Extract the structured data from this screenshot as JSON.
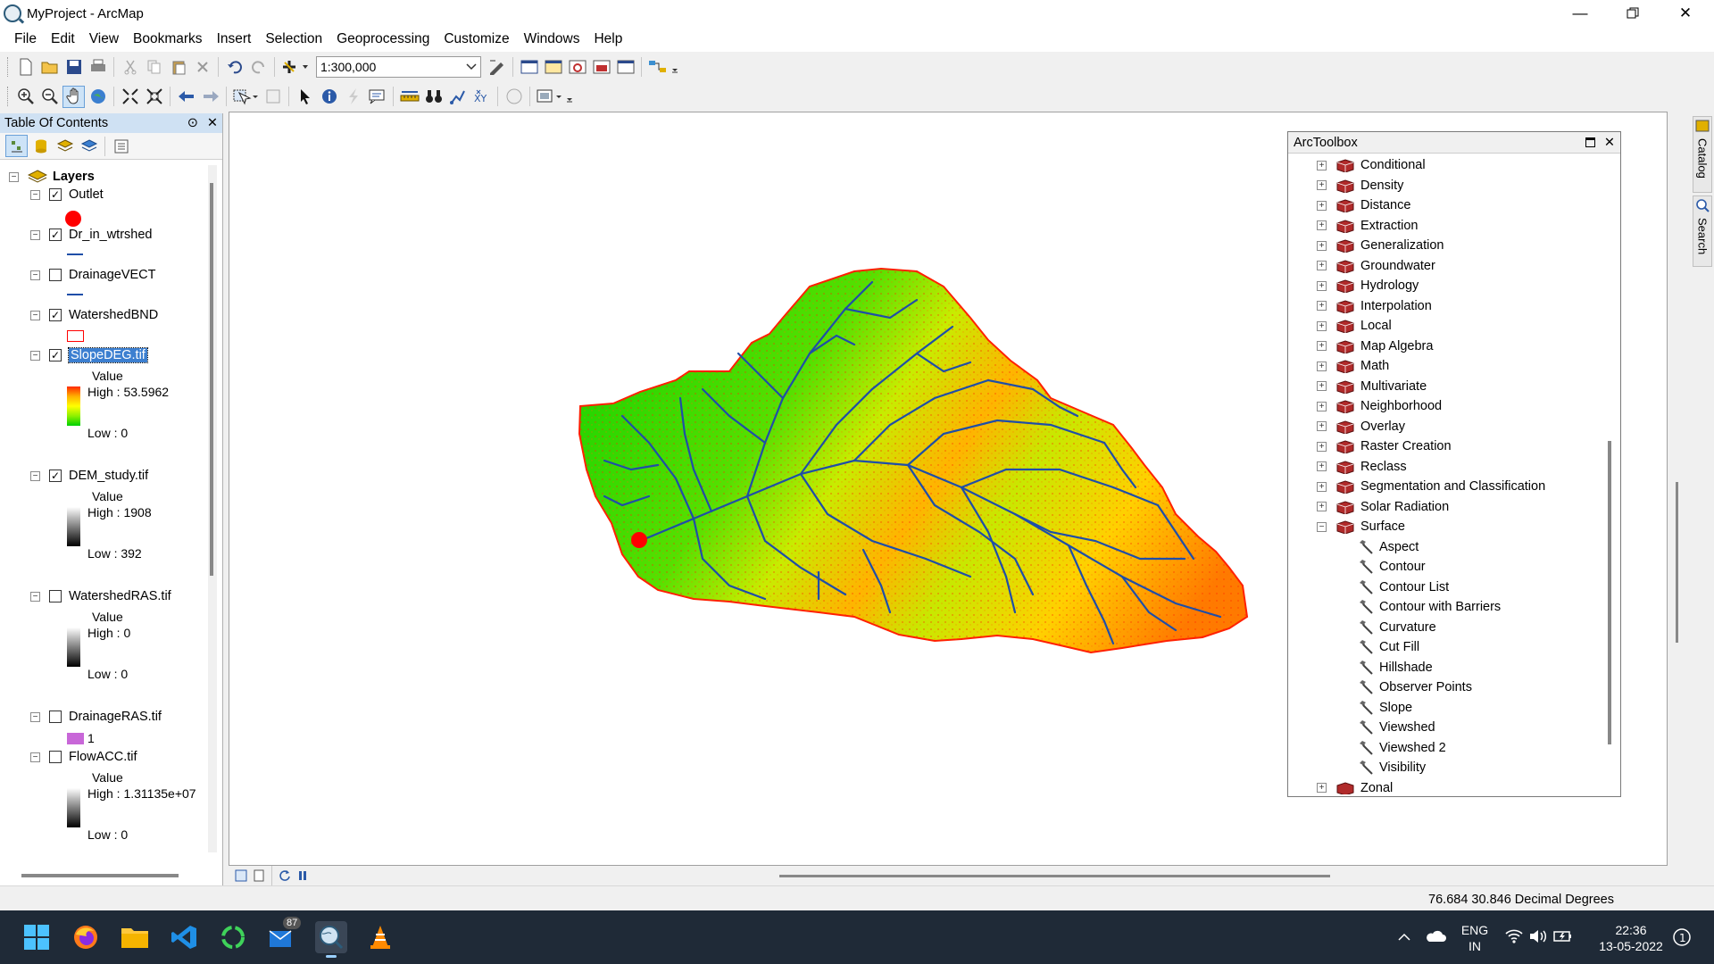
{
  "window": {
    "title": "MyProject - ArcMap"
  },
  "menu": [
    "File",
    "Edit",
    "View",
    "Bookmarks",
    "Insert",
    "Selection",
    "Geoprocessing",
    "Customize",
    "Windows",
    "Help"
  ],
  "toolbar": {
    "scale": "1:300,000"
  },
  "toc": {
    "title": "Table Of Contents",
    "root": "Layers",
    "layers": [
      {
        "name": "Outlet",
        "checked": true
      },
      {
        "name": "Dr_in_wtrshed",
        "checked": true
      },
      {
        "name": "DrainageVECT",
        "checked": false
      },
      {
        "name": "WatershedBND",
        "checked": true
      },
      {
        "name": "SlopeDEG.tif",
        "checked": true,
        "value_label": "Value",
        "high": "High : 53.5962",
        "low": "Low : 0"
      },
      {
        "name": "DEM_study.tif",
        "checked": true,
        "value_label": "Value",
        "high": "High : 1908",
        "low": "Low : 392"
      },
      {
        "name": "WatershedRAS.tif",
        "checked": false,
        "value_label": "Value",
        "high": "High : 0",
        "low": "Low : 0"
      },
      {
        "name": "DrainageRAS.tif",
        "checked": false,
        "class_label": "1"
      },
      {
        "name": "FlowACC.tif",
        "checked": false,
        "value_label": "Value",
        "high": "High : 1.31135e+07",
        "low": "Low : 0"
      }
    ]
  },
  "toolbox": {
    "title": "ArcToolbox",
    "toolsets": [
      "Conditional",
      "Density",
      "Distance",
      "Extraction",
      "Generalization",
      "Groundwater",
      "Hydrology",
      "Interpolation",
      "Local",
      "Map Algebra",
      "Math",
      "Multivariate",
      "Neighborhood",
      "Overlay",
      "Raster Creation",
      "Reclass",
      "Segmentation and Classification",
      "Solar Radiation",
      "Surface"
    ],
    "surface_tools": [
      "Aspect",
      "Contour",
      "Contour List",
      "Contour with Barriers",
      "Curvature",
      "Cut Fill",
      "Hillshade",
      "Observer Points",
      "Slope",
      "Viewshed",
      "Viewshed 2",
      "Visibility"
    ],
    "next_toolset": "Zonal"
  },
  "side_tabs": [
    "Catalog",
    "Search"
  ],
  "status": {
    "coords": "76.684  30.846 Decimal Degrees"
  },
  "taskbar": {
    "badge": "87",
    "lang1": "ENG",
    "lang2": "IN",
    "time": "22:36",
    "date": "13-05-2022"
  },
  "colors": {
    "selection": "#3c7fd0",
    "outlet": "#ff0000",
    "drainage": "#1f4ea8",
    "taskbar": "#1f2a37"
  }
}
